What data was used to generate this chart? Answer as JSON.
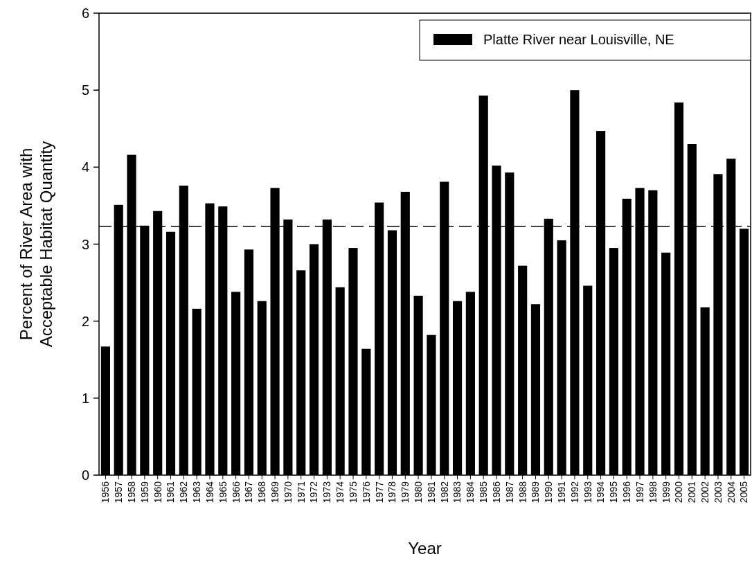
{
  "chart_data": {
    "type": "bar",
    "xlabel": "Year",
    "ylabel": "Percent of River Area with Acceptable Habitat Quantity",
    "categories": [
      "1956",
      "1957",
      "1958",
      "1959",
      "1960",
      "1961",
      "1962",
      "1963",
      "1964",
      "1965",
      "1966",
      "1967",
      "1968",
      "1969",
      "1970",
      "1971",
      "1972",
      "1973",
      "1974",
      "1975",
      "1976",
      "1977",
      "1978",
      "1979",
      "1980",
      "1981",
      "1982",
      "1983",
      "1984",
      "1985",
      "1986",
      "1987",
      "1988",
      "1989",
      "1990",
      "1991",
      "1992",
      "1993",
      "1994",
      "1995",
      "1996",
      "1997",
      "1998",
      "1999",
      "2000",
      "2001",
      "2002",
      "2003",
      "2004",
      "2005"
    ],
    "series": [
      {
        "name": "Platte River near Louisville, NE",
        "color": "#000000",
        "values": [
          1.67,
          3.51,
          4.16,
          3.24,
          3.43,
          3.16,
          3.76,
          2.16,
          3.53,
          3.49,
          2.38,
          2.93,
          2.26,
          3.73,
          3.32,
          2.66,
          3.0,
          3.32,
          2.44,
          2.95,
          1.64,
          3.54,
          3.18,
          3.68,
          2.33,
          1.82,
          3.81,
          2.26,
          2.38,
          4.93,
          4.02,
          3.93,
          2.72,
          2.22,
          3.33,
          3.05,
          5.0,
          2.46,
          4.47,
          2.95,
          3.59,
          3.73,
          3.7,
          2.89,
          4.84,
          4.3,
          2.18,
          3.91,
          4.11,
          3.2
        ]
      }
    ],
    "ylim": [
      0,
      6
    ],
    "yticks": [
      0,
      1,
      2,
      3,
      4,
      5,
      6
    ],
    "ref_lines": [
      {
        "axis": "y",
        "value": 3.23,
        "line_style": "dashed",
        "color": "#000000"
      }
    ],
    "legend": "top right",
    "grid": false
  }
}
